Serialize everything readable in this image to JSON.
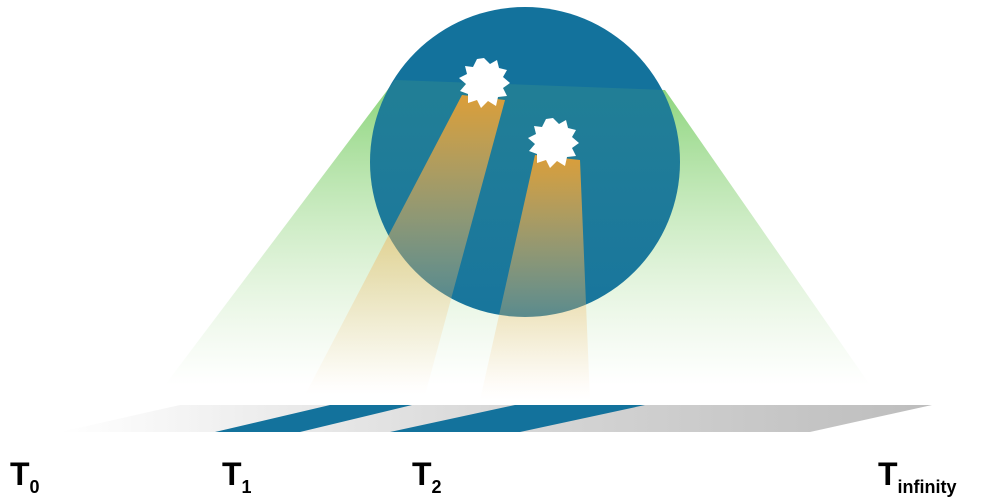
{
  "labels": [
    {
      "main": "T",
      "sub": "0"
    },
    {
      "main": "T",
      "sub": "1"
    },
    {
      "main": "T",
      "sub": "2"
    },
    {
      "main": "T",
      "sub": "infinity"
    }
  ]
}
